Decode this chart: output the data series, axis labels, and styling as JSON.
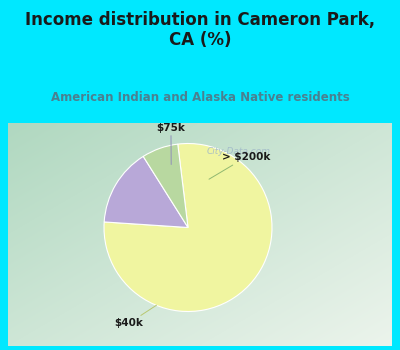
{
  "title": "Income distribution in Cameron Park,\nCA (%)",
  "subtitle": "American Indian and Alaska Native residents",
  "slices": [
    {
      "label": "$40k",
      "value": 78,
      "color": "#f0f5a0"
    },
    {
      "label": "$75k",
      "value": 15,
      "color": "#b8a8d8"
    },
    {
      "label": "> $200k",
      "value": 7,
      "color": "#b8d8a0"
    }
  ],
  "bg_color": "#00e8ff",
  "chart_bg_color": "#c8ddd0",
  "title_color": "#1a1a1a",
  "subtitle_color": "#4a8090",
  "label_color": "#1a1a1a",
  "watermark": "City-Data.com",
  "watermark_color": "#a0b8c8",
  "start_angle": 97,
  "line_color_75k": "#9090b8",
  "line_color_200k": "#90b870",
  "line_color_40k": "#b8c870"
}
